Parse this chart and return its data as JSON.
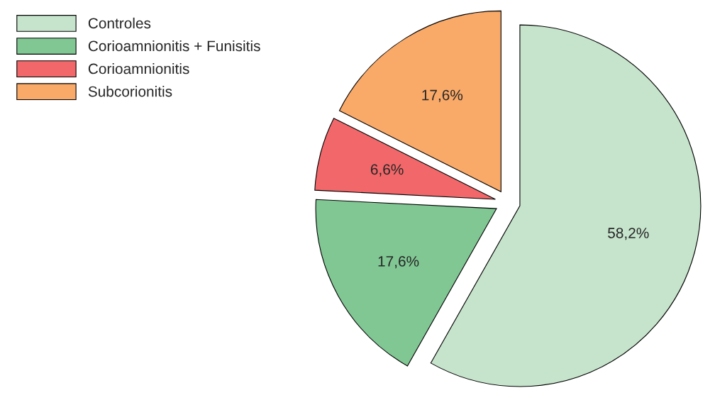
{
  "chart_data": {
    "type": "pie",
    "categories": [
      "Controles",
      "Corioamnionitis + Funisitis",
      "Corioamnionitis",
      "Subcorionitis"
    ],
    "values": [
      58.2,
      17.6,
      6.6,
      17.6
    ],
    "value_labels": [
      "58,2%",
      "17,6%",
      "6,6%",
      "17,6%"
    ],
    "colors": [
      "#c6e4cc",
      "#80c793",
      "#f2686a",
      "#f9a968"
    ],
    "legend": "top left"
  }
}
